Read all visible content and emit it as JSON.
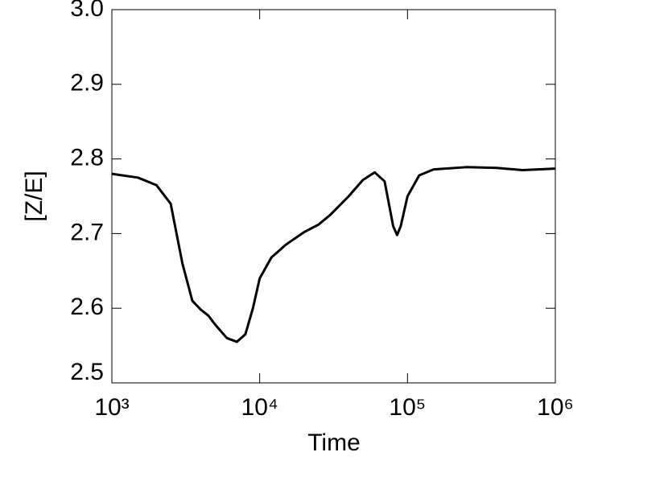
{
  "chart_data": {
    "type": "line",
    "x_label": "Time",
    "y_label": "[Z/E]",
    "xscale": "log",
    "xlim": [
      1000,
      1000000
    ],
    "xticks": [
      {
        "value": 1000,
        "label": "10³"
      },
      {
        "value": 10000,
        "label": "10⁴"
      },
      {
        "value": 100000,
        "label": "10⁵"
      },
      {
        "value": 1000000,
        "label": "10⁶"
      }
    ],
    "ylim": [
      2.5,
      3.0
    ],
    "yticks": [
      2.5,
      2.6,
      2.7,
      2.8,
      2.9,
      {
        "value": 3,
        "label": "3.0"
      }
    ],
    "x": [
      1000,
      1500,
      2000,
      2500,
      3000,
      3500,
      4000,
      4500,
      5000,
      6000,
      7000,
      8000,
      9000,
      10000,
      12000,
      15000,
      20000,
      25000,
      30000,
      40000,
      50000,
      60000,
      70000,
      80000,
      85000,
      90000,
      100000,
      120000,
      150000,
      250000,
      400000,
      600000,
      1000000
    ],
    "series": [
      {
        "color": "#000000",
        "values": [
          2.78,
          2.775,
          2.765,
          2.74,
          2.66,
          2.61,
          2.598,
          2.59,
          2.578,
          2.56,
          2.555,
          2.565,
          2.6,
          2.64,
          2.668,
          2.685,
          2.702,
          2.712,
          2.725,
          2.75,
          2.772,
          2.782,
          2.77,
          2.71,
          2.698,
          2.71,
          2.75,
          2.778,
          2.786,
          2.789,
          2.788,
          2.785,
          2.787
        ]
      }
    ]
  }
}
